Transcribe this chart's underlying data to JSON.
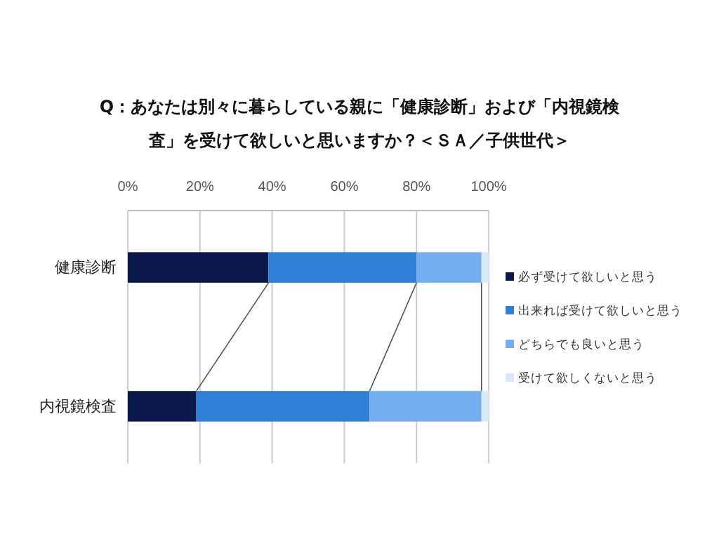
{
  "chart_data": {
    "type": "bar",
    "orientation": "horizontal",
    "stacked": true,
    "title": "Q：あなたは別々に暮らしている親に「健康診断」および「内視鏡検査」を受けて欲しいと思いますか？＜ＳＡ／子供世代＞",
    "categories": [
      "健康診断",
      "内視鏡検査"
    ],
    "series": [
      {
        "name": "必ず受けて欲しいと思う",
        "color": "#0b1a4a",
        "values": [
          39,
          19
        ]
      },
      {
        "name": "出来れば受けて欲しいと思う",
        "color": "#2e7fd6",
        "values": [
          41,
          48
        ]
      },
      {
        "name": "どちらでも良いと思う",
        "color": "#74aef0",
        "values": [
          18,
          31
        ]
      },
      {
        "name": "受けて欲しくないと思う",
        "color": "#d6e8fa",
        "values": [
          2,
          2
        ]
      }
    ],
    "xlim": [
      0,
      100
    ],
    "xticks": [
      {
        "value": 0,
        "label": "0%"
      },
      {
        "value": 20,
        "label": "20%"
      },
      {
        "value": 40,
        "label": "40%"
      },
      {
        "value": 60,
        "label": "60%"
      },
      {
        "value": 80,
        "label": "80%"
      },
      {
        "value": 100,
        "label": "100%"
      }
    ],
    "grid": "x",
    "legend": "right"
  }
}
